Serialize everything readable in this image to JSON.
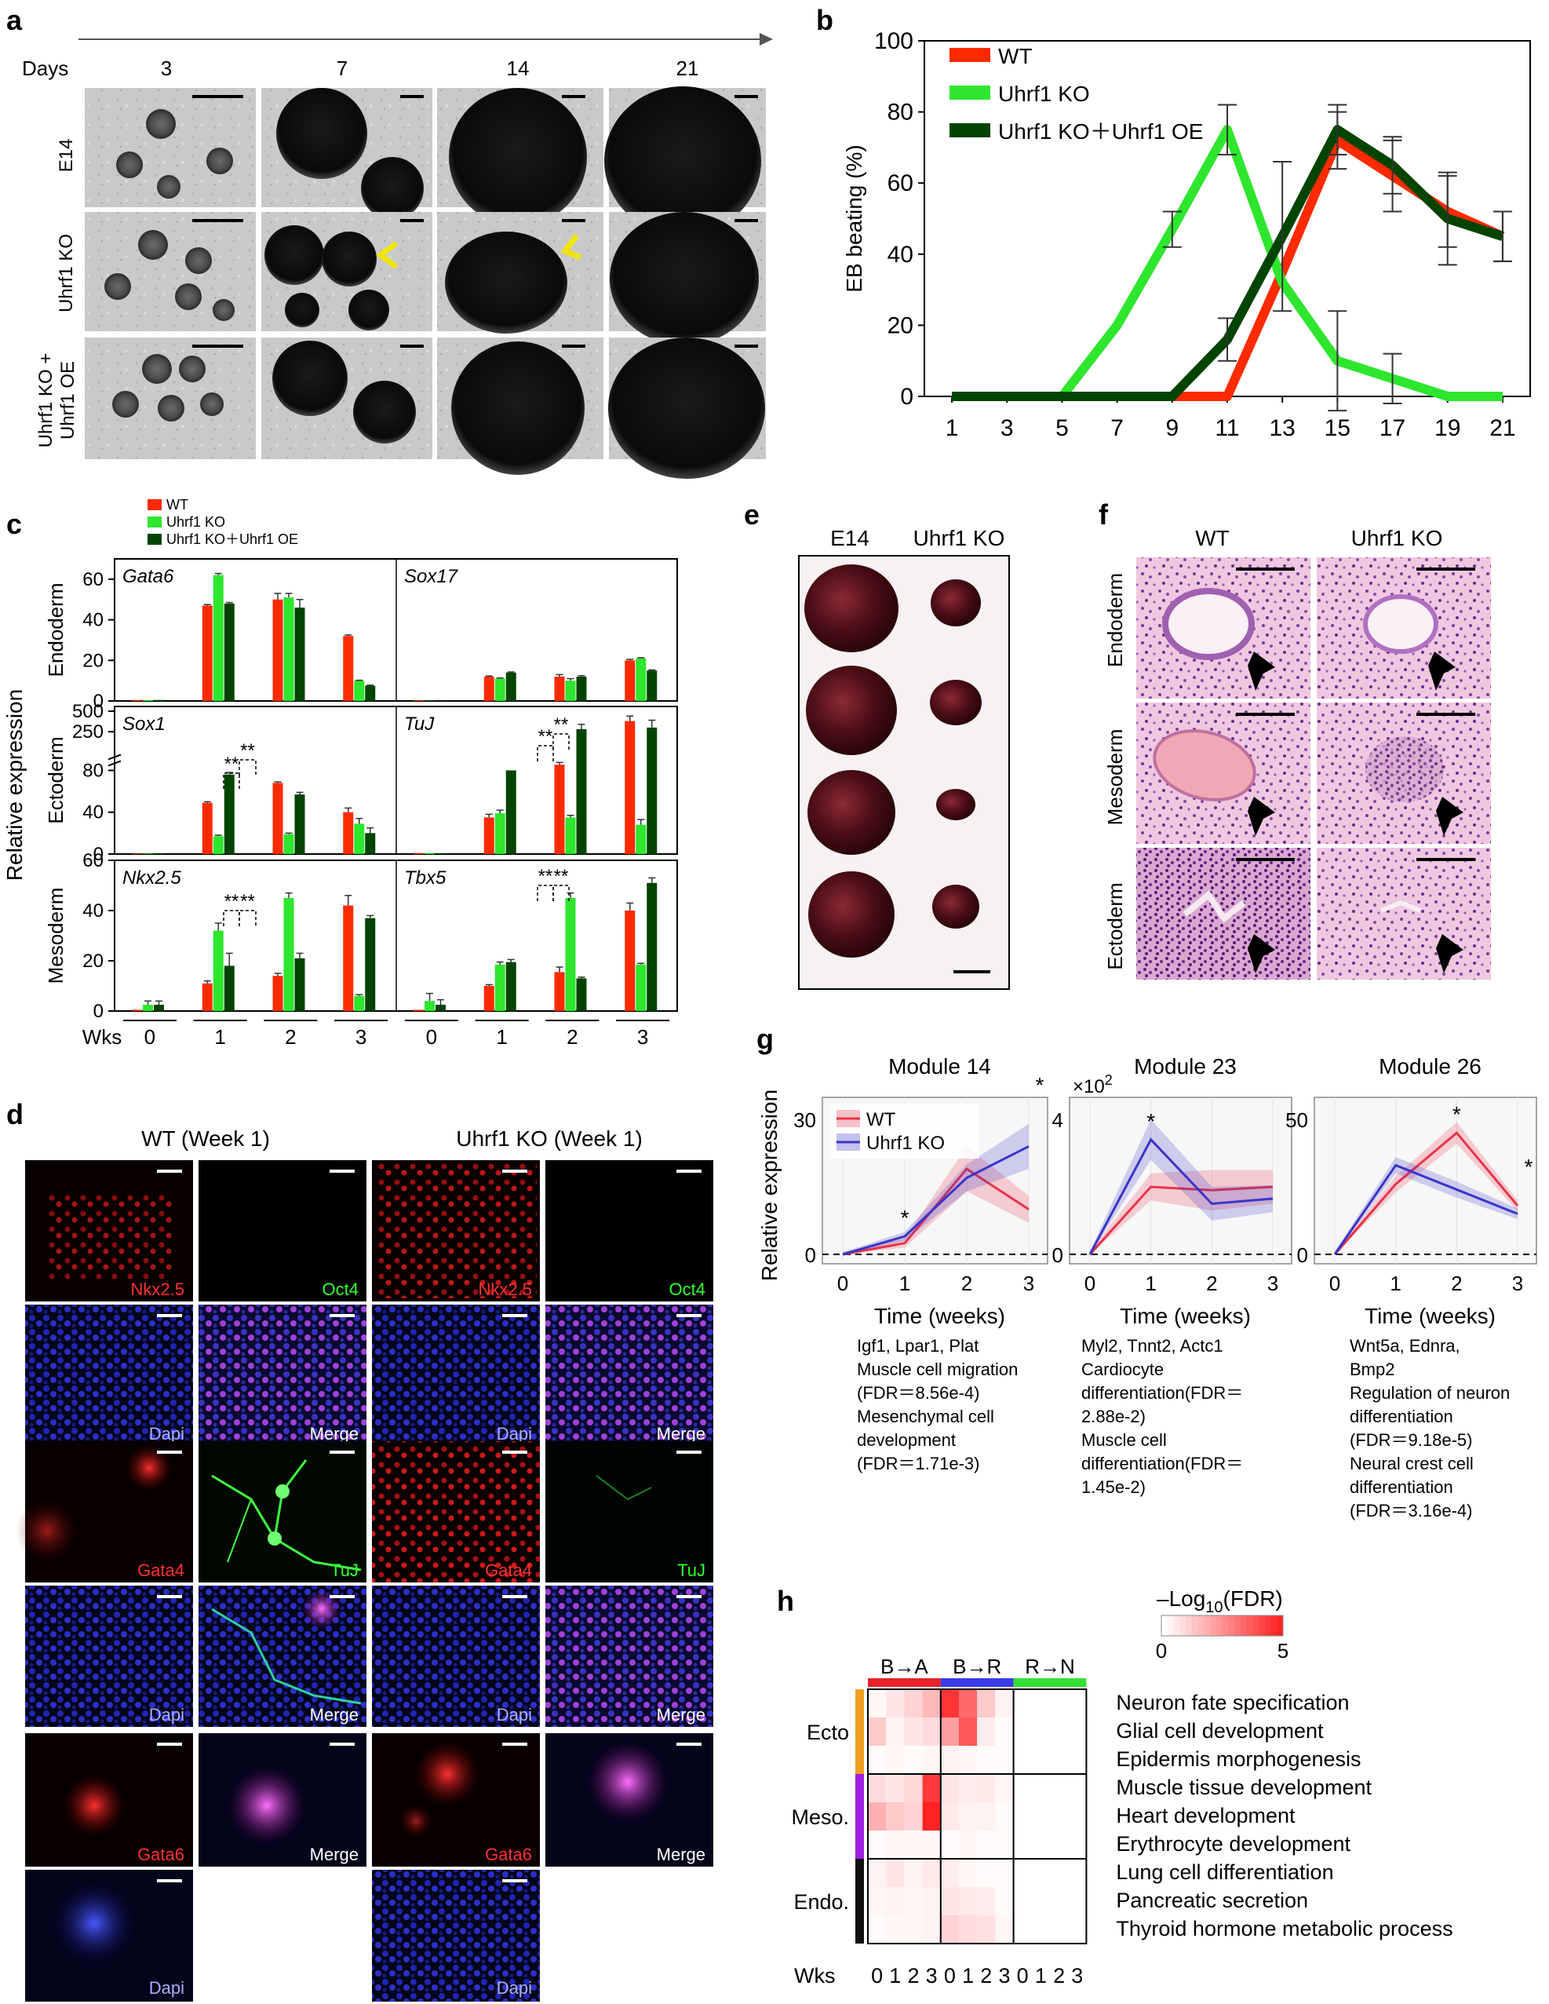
{
  "panel_labels": {
    "a": "a",
    "b": "b",
    "c": "c",
    "d": "d",
    "e": "e",
    "f": "f",
    "g": "g",
    "h": "h"
  },
  "panel_a": {
    "days_label": "Days",
    "days": [
      "3",
      "7",
      "14",
      "21"
    ],
    "rows": [
      "E14",
      "Uhrf1 KO",
      "Uhrf1 KO +\nUhrf1 OE"
    ],
    "row_line1": [
      "E14",
      "Uhrf1 KO",
      "Uhrf1 KO +"
    ],
    "row_line2": [
      "",
      "",
      "Uhrf1 OE"
    ],
    "arrow_color": "#f2e600"
  },
  "colors": {
    "wt": "#ff2a00",
    "ko": "#2ee62e",
    "oe": "#004400",
    "module_wt": "#e8334a",
    "module_ko": "#3b35c9"
  },
  "chart_data": [
    {
      "id": "b",
      "type": "line",
      "xlabel": "",
      "ylabel": "EB beating (%)",
      "ylim": [
        0,
        100
      ],
      "yticks": [
        0,
        20,
        40,
        60,
        80,
        100
      ],
      "xticks": [
        1,
        3,
        5,
        7,
        9,
        11,
        13,
        15,
        17,
        19,
        21
      ],
      "legend_position": "top-left",
      "series": [
        {
          "name": "WT",
          "x": [
            1,
            3,
            5,
            7,
            9,
            11,
            13,
            15,
            17,
            19,
            21
          ],
          "y": [
            0,
            0,
            0,
            0,
            0,
            0,
            35,
            72,
            62,
            52,
            45
          ],
          "err": [
            0,
            0,
            0,
            0,
            0,
            0,
            0,
            8,
            10,
            10,
            7
          ]
        },
        {
          "name": "Uhrf1 KO",
          "x": [
            1,
            3,
            5,
            7,
            9,
            11,
            13,
            15,
            17,
            19,
            21
          ],
          "y": [
            0,
            0,
            0,
            20,
            47,
            75,
            32,
            10,
            5,
            0,
            0
          ],
          "err": [
            0,
            0,
            0,
            0,
            5,
            7,
            0,
            14,
            7,
            0,
            0
          ]
        },
        {
          "name": "Uhrf1 KO＋Uhrf1 OE",
          "x": [
            1,
            3,
            5,
            7,
            9,
            11,
            13,
            15,
            17,
            19,
            21
          ],
          "y": [
            0,
            0,
            0,
            0,
            0,
            16,
            45,
            75,
            65,
            50,
            45
          ],
          "err": [
            0,
            0,
            0,
            0,
            0,
            6,
            21,
            7,
            8,
            13,
            7
          ]
        }
      ]
    },
    {
      "id": "c",
      "type": "bar",
      "ylabel": "Relative expression",
      "xlabel": "Wks",
      "weeks": [
        "0",
        "1",
        "2",
        "3"
      ],
      "legend": [
        "WT",
        "Uhrf1 KO",
        "Uhrf1 KO＋Uhrf1 OE"
      ],
      "rows": [
        {
          "layer": "Endoderm",
          "genes": [
            {
              "name": "Gata6",
              "values": [
                [
                  0.5,
                  0.5,
                  0.5
                ],
                [
                  47,
                  62,
                  48
                ],
                [
                  50,
                  51,
                  46
                ],
                [
                  32,
                  10,
                  7.5
                ]
              ],
              "err": [
                [
                  0,
                  0,
                  0
                ],
                [
                  0.5,
                  0.8,
                  0.5
                ],
                [
                  3,
                  2,
                  4
                ],
                [
                  0.5,
                  0.2,
                  0.3
                ]
              ]
            },
            {
              "name": "Sox17",
              "values": [
                [
                  0.3,
                  0.1,
                  0.1
                ],
                [
                  12,
                  11,
                  14
                ],
                [
                  12,
                  10,
                  12
                ],
                [
                  20,
                  21,
                  15
                ]
              ],
              "err": [
                [
                  0,
                  0,
                  0
                ],
                [
                  0.3,
                  0.3,
                  0.3
                ],
                [
                  1,
                  1,
                  0.5
                ],
                [
                  0.5,
                  0.3,
                  0.3
                ]
              ]
            }
          ],
          "yticks": [
            "0",
            "20",
            "40",
            "60"
          ],
          "ylim": [
            0,
            70
          ]
        },
        {
          "layer": "Ectoderm",
          "genes": [
            {
              "name": "Sox1",
              "values": [
                [
                  0.5,
                  0.5,
                  0.5
                ],
                [
                  49,
                  17,
                  76
                ],
                [
                  68,
                  19,
                  57
                ],
                [
                  40,
                  29,
                  20
                ]
              ],
              "err": [
                [
                  0,
                  0,
                  0
                ],
                [
                  1,
                  1,
                  2
                ],
                [
                  1,
                  1,
                  2
                ],
                [
                  4,
                  5,
                  5
                ]
              ]
            },
            {
              "name": "TuJ",
              "values": [
                [
                  1,
                  1,
                  0.5
                ],
                [
                  35,
                  39,
                  80
                ],
                [
                  105,
                  35,
                  280
                ],
                [
                  380,
                  28,
                  300
                ]
              ],
              "err": [
                [
                  0,
                  0,
                  0
                ],
                [
                  3,
                  3,
                  0
                ],
                [
                  10,
                  2,
                  60
                ],
                [
                  60,
                  5,
                  90
                ]
              ]
            }
          ],
          "yticks": [
            "0",
            "40",
            "80",
            "250",
            "500"
          ],
          "ylim": [
            0,
            500
          ],
          "broken_axis": true
        },
        {
          "layer": "Mesoderm",
          "genes": [
            {
              "name": "Nkx2.5",
              "values": [
                [
                  0.5,
                  2.5,
                  2.5
                ],
                [
                  11,
                  32,
                  18
                ],
                [
                  14,
                  45,
                  21
                ],
                [
                  42,
                  6,
                  37
                ]
              ],
              "err": [
                [
                  0,
                  1.5,
                  1.5
                ],
                [
                  1,
                  3,
                  5
                ],
                [
                  1,
                  2,
                  2
                ],
                [
                  4,
                  0.5,
                  1
                ]
              ]
            },
            {
              "name": "Tbx5",
              "values": [
                [
                  0.5,
                  4,
                  2.5
                ],
                [
                  10,
                  18.5,
                  19.5
                ],
                [
                  15.5,
                  45,
                  13
                ],
                [
                  40,
                  18.5,
                  51
                ]
              ],
              "err": [
                [
                  0,
                  3,
                  2
                ],
                [
                  0.5,
                  1,
                  1
                ],
                [
                  2,
                  2,
                  0.5
                ],
                [
                  3,
                  0.5,
                  2
                ]
              ]
            }
          ],
          "yticks": [
            "0",
            "20",
            "40",
            "60"
          ],
          "ylim": [
            0,
            60
          ]
        }
      ],
      "significance": "**"
    },
    {
      "id": "g",
      "type": "line",
      "xlabel": "Time (weeks)",
      "ylabel": "Relative expression",
      "legend": [
        "WT",
        "Uhrf1 KO"
      ],
      "modules": [
        {
          "title": "Module 14",
          "ymax": 30,
          "yticks": [
            "0",
            "30"
          ],
          "multiplier": "",
          "wt": [
            0,
            2.5,
            19,
            10
          ],
          "ko": [
            0,
            4,
            17,
            24
          ],
          "wt_band": [
            0.5,
            1,
            5,
            3
          ],
          "ko_band": [
            0.5,
            1,
            3,
            5
          ],
          "stars": [
            "",
            "*",
            "",
            "*"
          ],
          "annotation": [
            "Igf1, Lpar1, Plat",
            "Muscle cell migration",
            "(FDR＝8.56e-4)",
            "Mesenchymal cell",
            "development",
            "(FDR＝1.71e-3)"
          ]
        },
        {
          "title": "Module 23",
          "ymax": 4,
          "yticks": [
            "0",
            "4"
          ],
          "multiplier": "×10",
          "multiplier_exp": "2",
          "wt": [
            0,
            2,
            1.9,
            2
          ],
          "ko": [
            0,
            3.4,
            1.5,
            1.65
          ],
          "wt_band": [
            0.1,
            0.4,
            0.6,
            0.5
          ],
          "ko_band": [
            0.1,
            0.6,
            0.5,
            0.4
          ],
          "stars": [
            "",
            "*",
            "",
            ""
          ],
          "annotation": [
            "Myl2, Tnnt2, Actc1",
            "Cardiocyte",
            "differentiation(FDR＝",
            "2.88e-2)",
            "Muscle cell",
            "differentiation(FDR＝",
            "1.45e-2)"
          ]
        },
        {
          "title": "Module 26",
          "ymax": 50,
          "yticks": [
            "0",
            "50"
          ],
          "multiplier": "",
          "wt": [
            0,
            26,
            45,
            18
          ],
          "ko": [
            0,
            33,
            24,
            15
          ],
          "wt_band": [
            1,
            3,
            4,
            2
          ],
          "ko_band": [
            1,
            3,
            3,
            2
          ],
          "stars": [
            "",
            "",
            "*",
            "*"
          ],
          "annotation": [
            "Wnt5a, Ednra,",
            "Bmp2",
            "Regulation of neuron",
            "differentiation",
            "(FDR＝9.18e-5)",
            "Neural crest cell",
            "differentiation",
            "(FDR＝3.16e-4)"
          ]
        }
      ]
    },
    {
      "id": "h",
      "type": "heatmap",
      "colorbar_title": "–Log",
      "colorbar_sub": "10",
      "colorbar_suffix": "(FDR)",
      "colorbar_min": "0",
      "colorbar_max": "5",
      "columns_groups": [
        "B→A",
        "B→R",
        "R→N"
      ],
      "group_colors": [
        "#e8222a",
        "#3a3ae8",
        "#33e033"
      ],
      "weeks": [
        "0",
        "1",
        "2",
        "3",
        "0",
        "1",
        "2",
        "3",
        "0",
        "1",
        "2",
        "3"
      ],
      "xlabel": "Wks",
      "row_groups": [
        {
          "name": "Ecto",
          "color": "#f0a020",
          "rows": 3
        },
        {
          "name": "Meso.",
          "color": "#a020e0",
          "rows": 3
        },
        {
          "name": "Endo.",
          "color": "#111111",
          "rows": 3
        }
      ],
      "rows": [
        "Neuron fate specification",
        "Glial cell development",
        "Epidermis morphogenesis",
        "Muscle tissue development",
        "Heart development",
        "Erythrocyte development",
        "Lung cell differentiation",
        "Pancreatic secretion",
        "Thyroid hormone metabolic process"
      ],
      "values": [
        [
          0.2,
          0.6,
          1.0,
          1.6,
          4.6,
          3.4,
          1.2,
          0.3,
          0,
          0,
          0,
          0
        ],
        [
          1.2,
          0.3,
          0.6,
          0.8,
          2.2,
          3.8,
          0.4,
          0.1,
          0,
          0,
          0,
          0
        ],
        [
          0.1,
          0.2,
          0.1,
          0.2,
          0.3,
          0.2,
          0.1,
          0.1,
          0,
          0,
          0,
          0
        ],
        [
          0.8,
          0.6,
          0.9,
          4.5,
          0.6,
          0.4,
          0.5,
          0.2,
          0,
          0,
          0,
          0
        ],
        [
          1.8,
          1.2,
          1.0,
          5.0,
          0.5,
          0.3,
          0.3,
          0.1,
          0,
          0,
          0,
          0
        ],
        [
          0.1,
          0.2,
          0.2,
          0.2,
          0.1,
          0.2,
          0.1,
          0.1,
          0,
          0,
          0,
          0
        ],
        [
          0.3,
          0.6,
          0.3,
          0.5,
          0.4,
          0.2,
          0.1,
          0.1,
          0,
          0,
          0,
          0
        ],
        [
          0.2,
          0.3,
          0.2,
          0.3,
          0.6,
          0.5,
          0.4,
          0.1,
          0,
          0,
          0,
          0
        ],
        [
          0.1,
          0.2,
          0.2,
          0.3,
          1.0,
          0.8,
          0.7,
          0.2,
          0,
          0,
          0,
          0
        ]
      ]
    }
  ],
  "panel_d": {
    "title_wt": "WT (Week 1)",
    "title_ko": "Uhrf1 KO (Week 1)",
    "labels": {
      "nkx": "Nkx2.5",
      "oct": "Oct4",
      "dapi": "Dapi",
      "merge": "Merge",
      "gata4": "Gata4",
      "tuj": "TuJ",
      "gata6": "Gata6"
    }
  },
  "panel_e": {
    "col1": "E14",
    "col2": "Uhrf1 KO"
  },
  "panel_f": {
    "col1": "WT",
    "col2": "Uhrf1 KO",
    "rows": [
      "Endoderm",
      "Mesoderm",
      "Ectoderm"
    ]
  }
}
